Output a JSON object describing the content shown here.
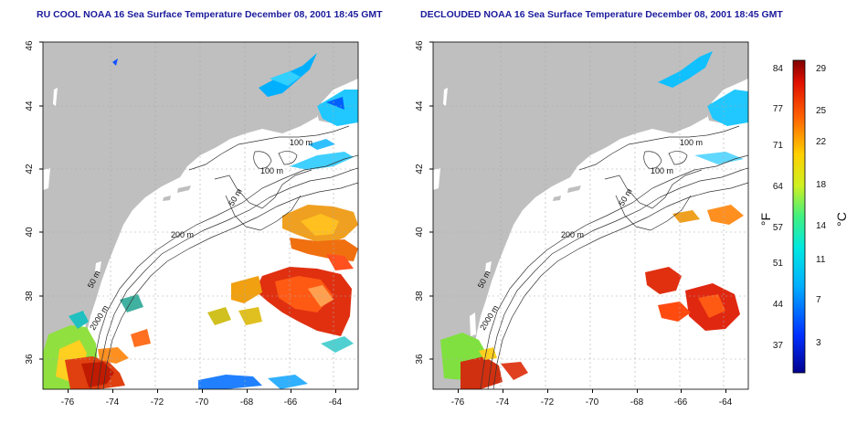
{
  "panels": [
    {
      "title": "RU COOL NOAA 16 Sea Surface Temperature December 08, 2001 18:45 GMT",
      "x_ticks": [
        "-76",
        "-74",
        "-72",
        "-70",
        "-68",
        "-66",
        "-64"
      ],
      "y_ticks": [
        "46",
        "44",
        "42",
        "40",
        "38",
        "36"
      ],
      "contour_labels": [
        "100 m",
        "100 m",
        "50 m",
        "200 m",
        "50 m",
        "2000 m"
      ]
    },
    {
      "title": "DECLOUDED NOAA 16 Sea Surface Temperature December 08, 2001 18:45 GMT",
      "x_ticks": [
        "-76",
        "-74",
        "-72",
        "-70",
        "-68",
        "-66",
        "-64"
      ],
      "y_ticks": [
        "46",
        "44",
        "42",
        "40",
        "38",
        "36"
      ],
      "contour_labels": [
        "100 m",
        "100 m",
        "50 m",
        "200 m",
        "50 m",
        "2000 m"
      ]
    }
  ],
  "colorbar": {
    "fahrenheit_label": "°F",
    "celsius_label": "°C",
    "f_ticks": [
      "84",
      "77",
      "71",
      "64",
      "57",
      "51",
      "44",
      "37"
    ],
    "c_ticks": [
      "29",
      "25",
      "22",
      "18",
      "14",
      "11",
      "7",
      "3"
    ]
  },
  "colors": {
    "land": "#bfbfbf",
    "ocean": "#ffffff",
    "title": "#1a1a9c",
    "contour": "#333333"
  }
}
